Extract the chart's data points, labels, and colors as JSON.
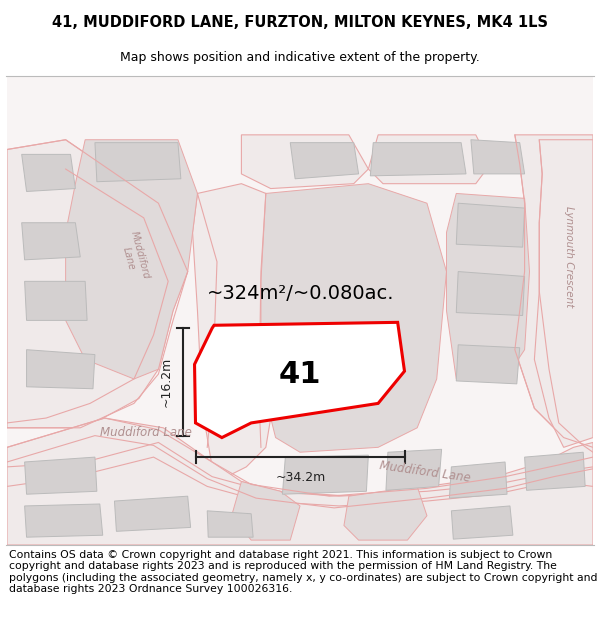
{
  "title": "41, MUDDIFORD LANE, FURZTON, MILTON KEYNES, MK4 1LS",
  "subtitle": "Map shows position and indicative extent of the property.",
  "footer": "Contains OS data © Crown copyright and database right 2021. This information is subject to Crown copyright and database rights 2023 and is reproduced with the permission of HM Land Registry. The polygons (including the associated geometry, namely x, y co-ordinates) are subject to Crown copyright and database rights 2023 Ordnance Survey 100026316.",
  "area_text": "~324m²/~0.080ac.",
  "width_label": "~34.2m",
  "height_label": "~16.2m",
  "property_number": "41",
  "title_fontsize": 10.5,
  "subtitle_fontsize": 9,
  "footer_fontsize": 7.8,
  "bg_color": "#ffffff",
  "map_bg": "#f8f4f4",
  "road_color": "#f0eaea",
  "road_edge": "#e8a8a8",
  "block_fill": "#e0dada",
  "block_edge": "#e8a8a8",
  "building_fill": "#d4d0d0",
  "building_edge": "#bbbbbb",
  "prop_fill": "#ffffff",
  "prop_edge": "#ee0000",
  "prop_linewidth": 2.2,
  "label_color": "#b09090",
  "meas_color": "#222222"
}
